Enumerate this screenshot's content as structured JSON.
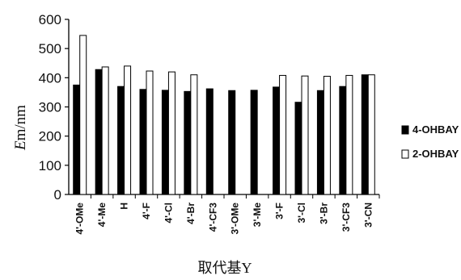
{
  "chart_data": {
    "type": "bar",
    "ylabel_prefix": "E",
    "ylabel_suffix": "m/nm",
    "xlabel": "取代基Y",
    "ylim": [
      0,
      600
    ],
    "yticks": [
      0,
      100,
      200,
      300,
      400,
      500,
      600
    ],
    "categories": [
      "4'-OMe",
      "4'-Me",
      "H",
      "4'-F",
      "4'-Cl",
      "4'-Br",
      "4'-CF3",
      "3'-OMe",
      "3'-Me",
      "3'-F",
      "3'-Cl",
      "3'-Br",
      "3'-CF3",
      "3'-CN"
    ],
    "series": [
      {
        "name": "4-OHBAY",
        "color": "#000000",
        "values": [
          375,
          428,
          370,
          360,
          357,
          353,
          362,
          356,
          357,
          368,
          316,
          356,
          370,
          410
        ]
      },
      {
        "name": "2-OHBAY",
        "color": "#ffffff",
        "values": [
          545,
          437,
          440,
          423,
          420,
          410,
          null,
          null,
          null,
          408,
          406,
          405,
          408,
          410
        ]
      }
    ],
    "grid": false,
    "legend_position": "right"
  }
}
